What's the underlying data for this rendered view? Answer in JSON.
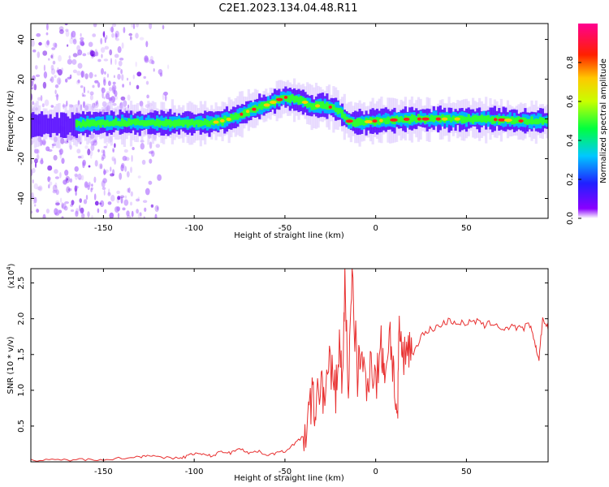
{
  "title": "C2E1.2023.134.04.48.R11",
  "chart_data": [
    {
      "type": "heatmap",
      "title": "C2E1.2023.134.04.48.R11",
      "xlabel": "Height of straight line (km)",
      "ylabel": "Frequency (Hz)",
      "xlim": [
        -190,
        95
      ],
      "ylim": [
        -50,
        48
      ],
      "xticks": [
        -150,
        -100,
        -50,
        0,
        50
      ],
      "yticks": [
        -40,
        -20,
        0,
        20,
        40
      ],
      "colorbar": {
        "label": "Normalized spectral amplitude",
        "range": [
          0.0,
          1.0
        ],
        "ticks": [
          0.0,
          0.2,
          0.4,
          0.6,
          0.8
        ],
        "colormap": "rainbow (violet-blue-cyan-green-yellow-red-magenta)"
      },
      "ridge_x": [
        -190,
        -170,
        -150,
        -130,
        -110,
        -100,
        -90,
        -80,
        -70,
        -60,
        -55,
        -50,
        -45,
        -40,
        -35,
        -30,
        -25,
        -20,
        -15,
        -10,
        0,
        20,
        40,
        60,
        80,
        95
      ],
      "ridge_y": [
        -3,
        -3,
        -2,
        -2,
        -2,
        -2,
        -2,
        0,
        4,
        7,
        9,
        11,
        10,
        9,
        6,
        7,
        6,
        4,
        -1,
        -2,
        -1,
        0,
        0,
        0,
        -1,
        -1
      ],
      "noise_region_x": [
        -190,
        -110
      ]
    },
    {
      "type": "line",
      "xlabel": "Height of straight line (km)",
      "ylabel": "SNR (10 * v/v)",
      "ylabel_unit": "(x10",
      "ylabel_exponent": "4",
      "ylabel_close": ")",
      "xlim": [
        -190,
        95
      ],
      "ylim": [
        0,
        2.7
      ],
      "xticks": [
        -150,
        -100,
        -50,
        0,
        50
      ],
      "yticks": [
        0.5,
        1.0,
        1.5,
        2.0,
        2.5
      ],
      "series": [
        {
          "color": "#e83030",
          "x": [
            -190,
            -180,
            -170,
            -160,
            -150,
            -140,
            -130,
            -125,
            -120,
            -110,
            -105,
            -100,
            -95,
            -90,
            -85,
            -80,
            -75,
            -70,
            -65,
            -60,
            -55,
            -50,
            -45,
            -40,
            -37,
            -35,
            -33,
            -30,
            -28,
            -25,
            -22,
            -20,
            -18,
            -17,
            -15,
            -13,
            -10,
            -8,
            -5,
            -3,
            0,
            3,
            5,
            8,
            10,
            12,
            13,
            15,
            18,
            20,
            25,
            30,
            35,
            40,
            45,
            50,
            55,
            60,
            65,
            70,
            75,
            80,
            85,
            88,
            90,
            92,
            95
          ],
          "y": [
            0.02,
            0.02,
            0.03,
            0.03,
            0.04,
            0.05,
            0.07,
            0.1,
            0.06,
            0.05,
            0.07,
            0.12,
            0.1,
            0.08,
            0.15,
            0.12,
            0.2,
            0.12,
            0.15,
            0.1,
            0.12,
            0.15,
            0.25,
            0.35,
            0.6,
            0.9,
            0.7,
            1.2,
            0.8,
            1.4,
            1.0,
            1.6,
            1.1,
            2.65,
            1.0,
            2.5,
            1.2,
            1.6,
            0.9,
            1.5,
            1.1,
            1.6,
            1.3,
            1.8,
            1.2,
            0.5,
            1.9,
            1.4,
            1.7,
            1.5,
            1.75,
            1.85,
            1.9,
            1.97,
            1.95,
            1.93,
            1.97,
            1.9,
            1.95,
            1.85,
            1.9,
            1.85,
            1.92,
            1.6,
            1.45,
            2.0,
            1.85
          ]
        }
      ]
    }
  ]
}
